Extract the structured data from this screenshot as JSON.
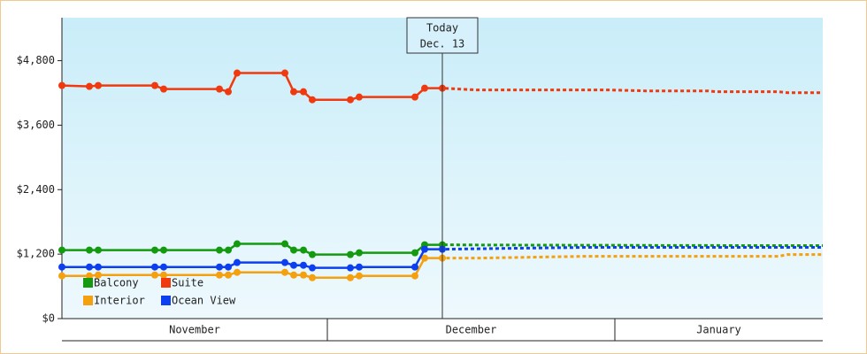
{
  "chart_data": {
    "type": "line",
    "x": [
      0,
      3.1,
      4.1,
      10.5,
      11.5,
      17.8,
      18.8,
      19.8,
      25.2,
      26.2,
      27.3,
      28.3,
      32.6,
      33.6,
      39.9,
      41,
      43,
      47,
      59,
      62,
      66,
      73,
      74,
      81,
      82,
      86
    ],
    "xlim": [
      0,
      86
    ],
    "month_bands": [
      {
        "label": "November",
        "from": 0,
        "to": 30
      },
      {
        "label": "December",
        "from": 30,
        "to": 62.5
      },
      {
        "label": "January",
        "from": 62.5,
        "to": 86
      }
    ],
    "annotation": {
      "x": 43,
      "lines": [
        "Today",
        "Dec. 13"
      ]
    },
    "ylim": [
      0,
      5600
    ],
    "yticks": [
      {
        "value": 0,
        "label": "$0"
      },
      {
        "value": 1200,
        "label": "$1,200"
      },
      {
        "value": 2400,
        "label": "$2,400"
      },
      {
        "value": 3600,
        "label": "$3,600"
      },
      {
        "value": 4800,
        "label": "$4,800"
      }
    ],
    "series": [
      {
        "name": "Balcony",
        "color": "#139a0e",
        "values": [
          1275,
          1275,
          1275,
          1275,
          1275,
          1275,
          1275,
          1391,
          1391,
          1275,
          1275,
          1192,
          1192,
          1225,
          1225,
          1374,
          1374,
          1370,
          1365,
          1365,
          1362,
          1360,
          1360,
          1358,
          1358,
          1358
        ]
      },
      {
        "name": "Suite",
        "color": "#f0390f",
        "values": [
          4338,
          4321,
          4338,
          4338,
          4272,
          4272,
          4222,
          4570,
          4570,
          4222,
          4222,
          4073,
          4073,
          4123,
          4123,
          4288,
          4288,
          4255,
          4255,
          4255,
          4238,
          4238,
          4222,
          4222,
          4205,
          4205
        ]
      },
      {
        "name": "Interior",
        "color": "#f5a00f",
        "values": [
          795,
          795,
          811,
          811,
          811,
          811,
          811,
          861,
          861,
          811,
          811,
          762,
          762,
          795,
          795,
          1126,
          1126,
          1126,
          1159,
          1159,
          1159,
          1159,
          1159,
          1159,
          1192,
          1192
        ]
      },
      {
        "name": "Ocean View",
        "color": "#0c3ff0",
        "values": [
          960,
          960,
          960,
          960,
          960,
          960,
          960,
          1043,
          1043,
          993,
          993,
          944,
          944,
          960,
          960,
          1291,
          1291,
          1300,
          1325,
          1325,
          1325,
          1325,
          1325,
          1325,
          1325,
          1325
        ]
      }
    ]
  }
}
